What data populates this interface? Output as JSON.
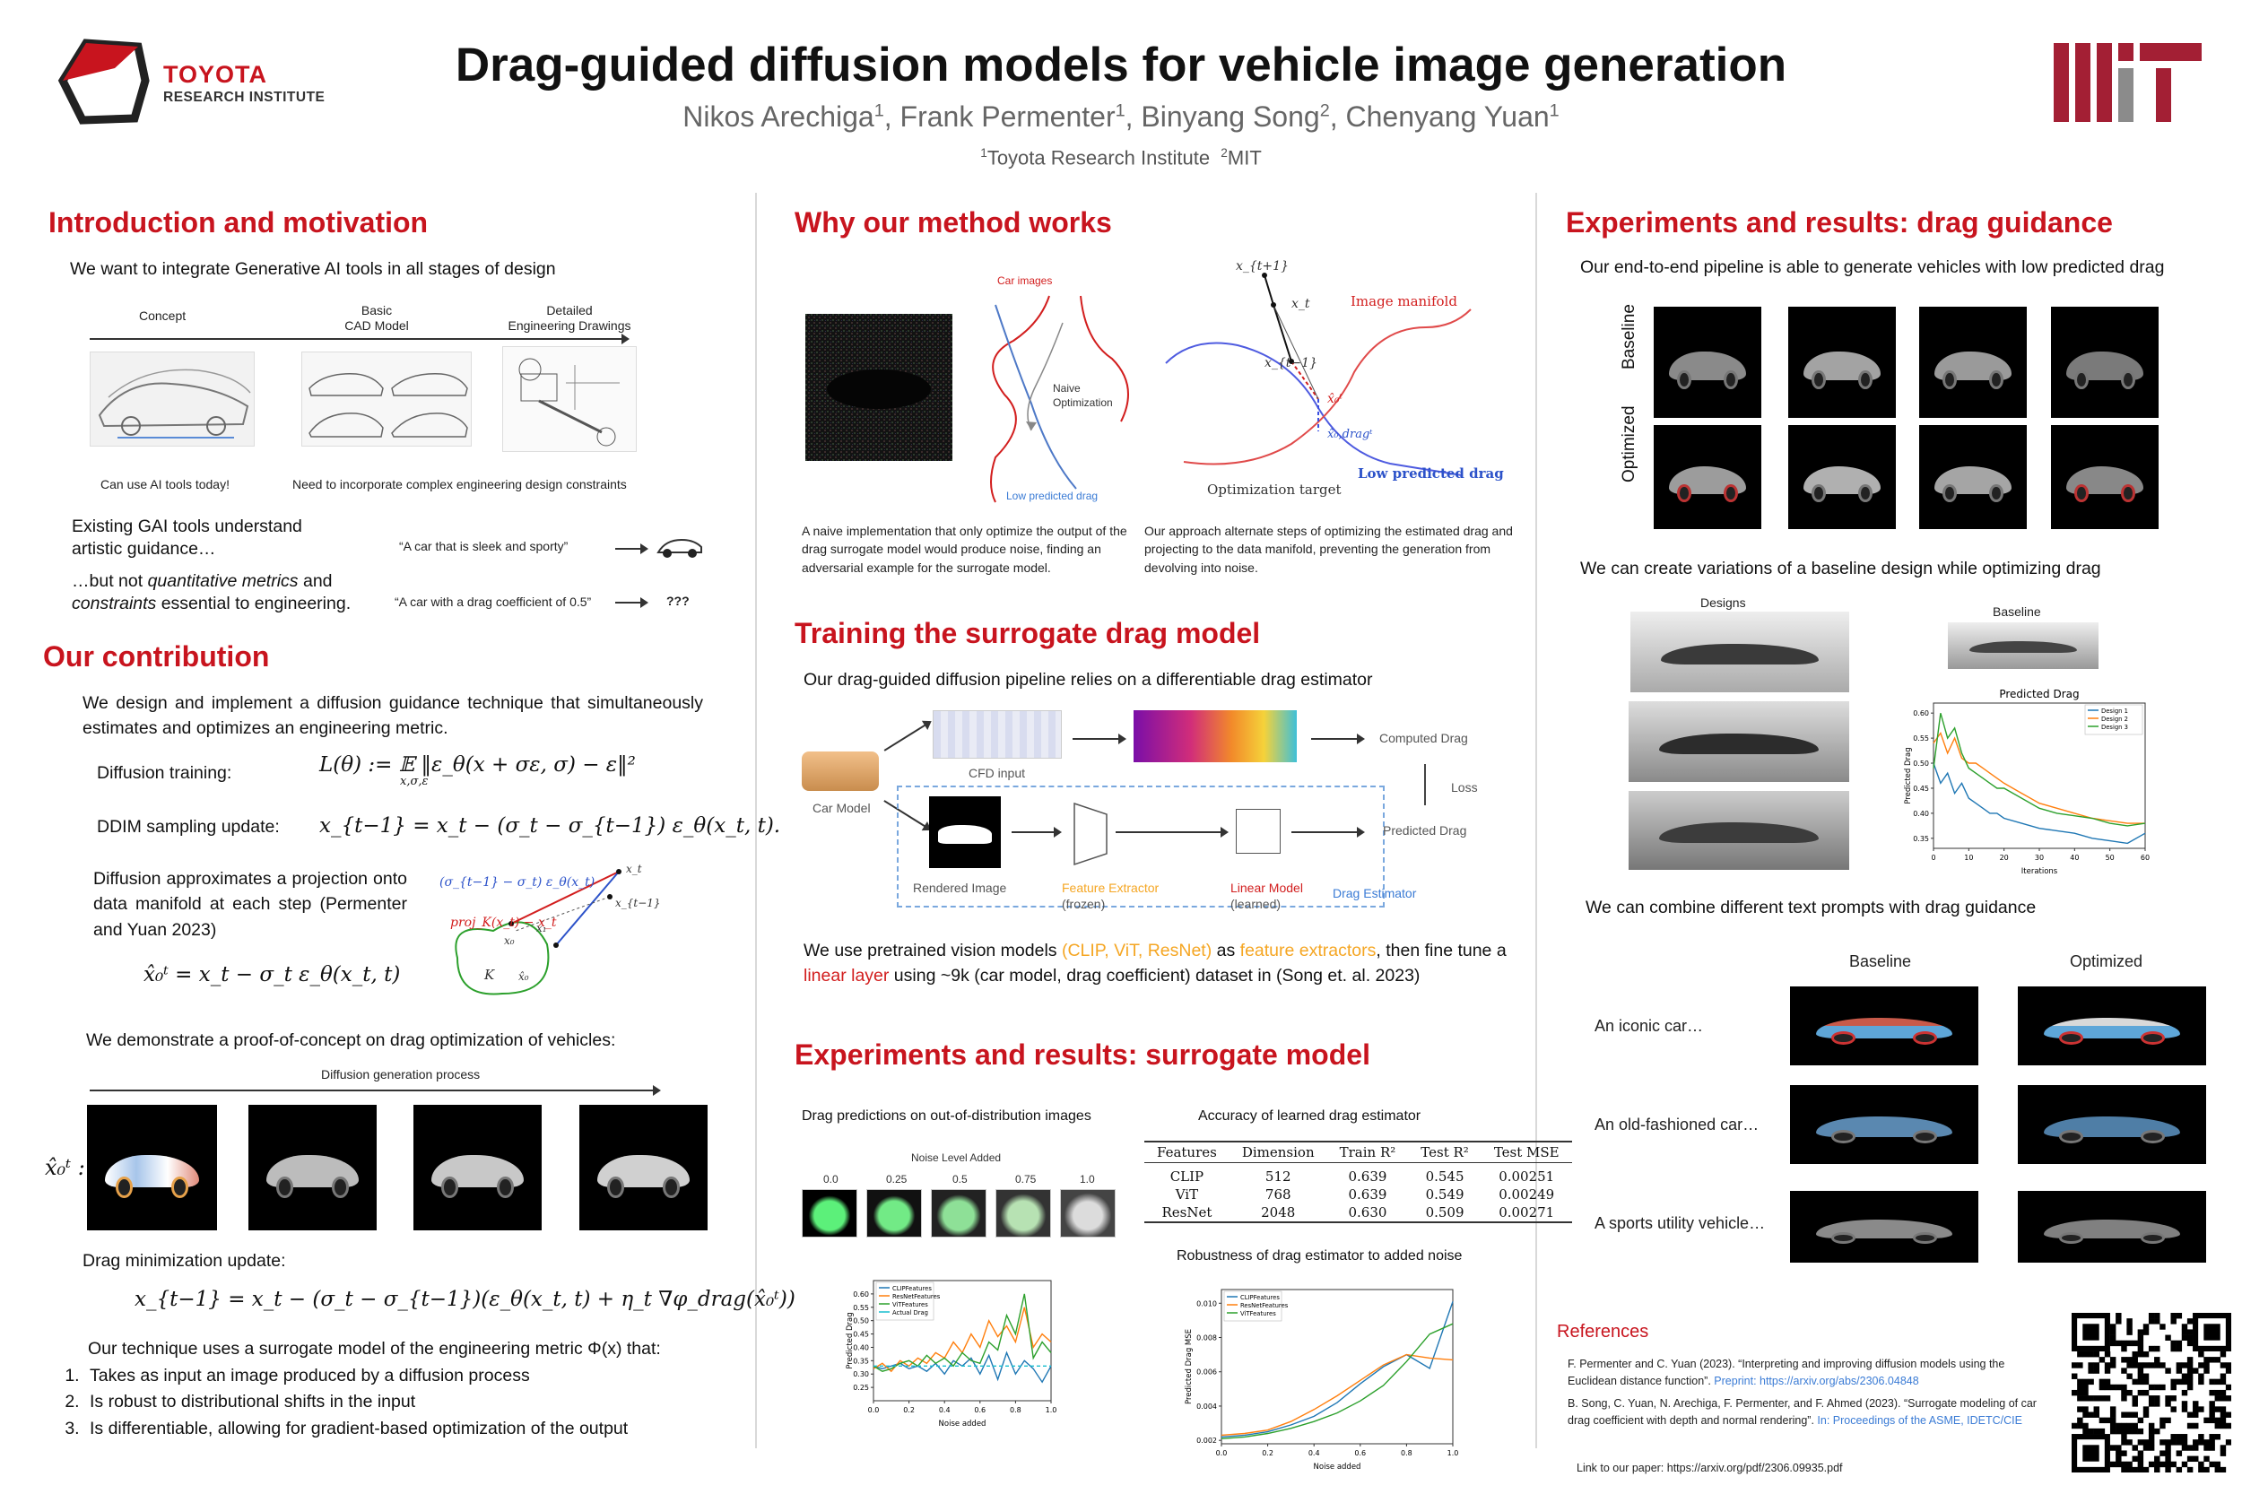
{
  "header": {
    "logo_left_line1": "TOYOTA",
    "logo_left_line2": "RESEARCH INSTITUTE",
    "title": "Drag-guided diffusion models for vehicle image generation",
    "authors": [
      {
        "name": "Nikos Arechiga",
        "aff": "1"
      },
      {
        "name": "Frank Permenter",
        "aff": "1"
      },
      {
        "name": "Binyang Song",
        "aff": "2"
      },
      {
        "name": "Chenyang Yuan",
        "aff": "1"
      }
    ],
    "aff1": "Toyota Research Institute",
    "aff2": "MIT",
    "aff1_num": "1",
    "aff2_num": "2",
    "logo_right": "MIT"
  },
  "intro": {
    "title": "Introduction and motivation",
    "lead": "We want to integrate Generative AI tools in all stages of design",
    "stage_concept": "Concept",
    "stage_cad_1": "Basic",
    "stage_cad_2": "CAD Model",
    "stage_eng_1": "Detailed",
    "stage_eng_2": "Engineering Drawings",
    "caption_left": "Can use AI tools today!",
    "caption_right": "Need to incorporate complex engineering design constraints",
    "gai_line1": "Existing GAI tools understand",
    "gai_line2": "artistic guidance…",
    "prompt1": "“A car that is sleek and sporty”",
    "but_line1_a": "…but not ",
    "but_line1_b": "quantitative metrics",
    "but_line1_c": " and",
    "but_line2_a": "constraints",
    "but_line2_b": " essential to engineering.",
    "prompt2": "“A car with a drag coefficient of 0.5”",
    "unknown": "???"
  },
  "contribution": {
    "title": "Our contribution",
    "lead": "We design and implement a diffusion guidance technique that simultaneously estimates and optimizes an engineering metric.",
    "diffusion_training_label": "Diffusion training:",
    "diffusion_training_eq": "L(θ) := 𝔼 ‖ε_θ(x + σε, σ) − ε‖²",
    "diffusion_training_sub": "x,σ,ε",
    "ddim_label": "DDIM sampling update:",
    "ddim_eq": "x_{t−1} = x_t − (σ_t − σ_{t−1}) ε_θ(x_t, t).",
    "projection_text": "Diffusion approximates a projection onto data manifold at each step (Permenter and Yuan 2023)",
    "x0_eq": "x̂₀ᵗ = x_t − σ_t ε_θ(x_t, t)",
    "diag_label_top": "(σ_{t−1} − σ_t) ε_θ(x_t)",
    "diag_label_proj": "proj_K(x_t) − x_t",
    "diag_xt": "x_t",
    "diag_xt1": "x_{t−1}",
    "diag_x1": "x₁",
    "diag_x0": "x₀",
    "diag_k": "K",
    "diag_x0hat": "x̂₀",
    "demo_lead": "We demonstrate a proof-of-concept on drag optimization of vehicles:",
    "process_label": "Diffusion generation process",
    "row_label": "x̂₀ᵗ :",
    "drag_update_label": "Drag minimization update:",
    "drag_update_eq": "x_{t−1} = x_t − (σ_t − σ_{t−1})(ε_θ(x_t, t) + η_t ∇φ_drag(x̂₀ᵗ))",
    "surrogate_lead": "Our technique uses a surrogate model of the engineering metric Φ(x) that:",
    "items": [
      "Takes as input an image produced by a diffusion process",
      "Is robust to distributional shifts in the input",
      "Is differentiable, allowing for gradient-based optimization of the output"
    ]
  },
  "why": {
    "title": "Why our method works",
    "car_images": "Car images",
    "naive": "Naive",
    "optimization": "Optimization",
    "low_drag": "Low predicted drag",
    "xt1": "x_{t+1}",
    "xt": "x_t",
    "xtm1": "x_{t−1}",
    "x0t": "x̂₀ᵗ",
    "x0drag": "x̂₀,dragᵗ",
    "image_manifold": "Image manifold",
    "low_drag2": "Low predicted drag",
    "opt_target": "Optimization target",
    "caption_left": "A naive implementation that only optimize the output of the drag surrogate model would produce noise, finding an adversarial example for the surrogate model.",
    "caption_right": "Our approach alternate steps of optimizing the estimated drag and projecting to the data manifold, preventing the generation from devolving into noise."
  },
  "training": {
    "title": "Training the surrogate drag model",
    "lead": "Our drag-guided diffusion pipeline relies on a differentiable drag estimator",
    "car_model": "Car Model",
    "cfd_input": "CFD input",
    "computed_drag": "Computed Drag",
    "loss": "Loss",
    "predicted_drag": "Predicted Drag",
    "rendered_image": "Rendered Image",
    "feature_extractor": "Feature Extractor",
    "frozen": "(frozen)",
    "linear_model": "Linear Model",
    "learned": "(learned)",
    "drag_estimator": "Drag Estimator",
    "desc_a": "We use pretrained vision models ",
    "desc_b": "(CLIP, ViT, ResNet)",
    "desc_c": " as ",
    "desc_d": "feature extractors",
    "desc_e": ", then fine tune a ",
    "desc_f": "linear layer",
    "desc_g": " using ~9k (car model, drag coefficient) dataset in (Song et. al. 2023)"
  },
  "surrogate_results": {
    "title": "Experiments and results: surrogate model",
    "ood_label": "Drag predictions on out-of-distribution images",
    "noise_label": "Noise Level Added",
    "noise_levels": [
      "0.0",
      "0.25",
      "0.5",
      "0.75",
      "1.0"
    ],
    "acc_label": "Accuracy of learned drag estimator",
    "table": {
      "headers": [
        "Features",
        "Dimension",
        "Train R²",
        "Test R²",
        "Test MSE"
      ],
      "rows": [
        [
          "CLIP",
          "512",
          "0.639",
          "0.545",
          "0.00251"
        ],
        [
          "ViT",
          "768",
          "0.639",
          "0.549",
          "0.00249"
        ],
        [
          "ResNet",
          "2048",
          "0.630",
          "0.509",
          "0.00271"
        ]
      ]
    },
    "robust_label": "Robustness of drag estimator to added noise"
  },
  "chart_data": [
    {
      "type": "line",
      "title": "",
      "xlabel": "Noise added",
      "ylabel": "Predicted Drag",
      "xlim": [
        0,
        1
      ],
      "ylim": [
        0.2,
        0.65
      ],
      "x": [
        0.0,
        0.05,
        0.1,
        0.15,
        0.2,
        0.25,
        0.3,
        0.35,
        0.4,
        0.45,
        0.5,
        0.55,
        0.6,
        0.65,
        0.7,
        0.75,
        0.8,
        0.85,
        0.9,
        0.95,
        1.0
      ],
      "series": [
        {
          "name": "CLIPFeatures",
          "color": "#1f77b4",
          "values": [
            0.33,
            0.32,
            0.33,
            0.34,
            0.32,
            0.33,
            0.31,
            0.34,
            0.3,
            0.35,
            0.33,
            0.36,
            0.3,
            0.37,
            0.28,
            0.38,
            0.3,
            0.35,
            0.32,
            0.27,
            0.33
          ]
        },
        {
          "name": "ResNetFeatures",
          "color": "#ff7f0e",
          "values": [
            0.32,
            0.34,
            0.31,
            0.35,
            0.33,
            0.36,
            0.34,
            0.38,
            0.36,
            0.42,
            0.38,
            0.45,
            0.4,
            0.5,
            0.44,
            0.48,
            0.42,
            0.55,
            0.4,
            0.45,
            0.42
          ]
        },
        {
          "name": "ViTFeatures",
          "color": "#2ca02c",
          "values": [
            0.33,
            0.31,
            0.32,
            0.34,
            0.35,
            0.33,
            0.37,
            0.34,
            0.36,
            0.33,
            0.38,
            0.35,
            0.34,
            0.42,
            0.39,
            0.52,
            0.45,
            0.6,
            0.36,
            0.42,
            0.38
          ]
        },
        {
          "name": "Actual Drag",
          "color": "#17becf",
          "values": [
            0.33,
            0.33,
            0.33,
            0.33,
            0.33,
            0.33,
            0.33,
            0.33,
            0.33,
            0.33,
            0.33,
            0.33,
            0.33,
            0.33,
            0.33,
            0.33,
            0.33,
            0.33,
            0.33,
            0.33,
            0.33
          ]
        }
      ]
    },
    {
      "type": "line",
      "title": "",
      "xlabel": "Noise added",
      "ylabel": "Predicted Drag MSE",
      "xlim": [
        0,
        1
      ],
      "ylim": [
        0.0018,
        0.0108
      ],
      "x": [
        0.0,
        0.1,
        0.2,
        0.3,
        0.4,
        0.5,
        0.6,
        0.7,
        0.8,
        0.9,
        1.0
      ],
      "series": [
        {
          "name": "CLIPFeatures",
          "color": "#1f77b4",
          "values": [
            0.0022,
            0.0023,
            0.0025,
            0.0029,
            0.0034,
            0.0042,
            0.0053,
            0.0063,
            0.007,
            0.0062,
            0.0101
          ]
        },
        {
          "name": "ResNetFeatures",
          "color": "#ff7f0e",
          "values": [
            0.0023,
            0.0024,
            0.0026,
            0.0031,
            0.0038,
            0.0046,
            0.0055,
            0.0064,
            0.007,
            0.0068,
            0.0067
          ]
        },
        {
          "name": "ViTFeatures",
          "color": "#2ca02c",
          "values": [
            0.0021,
            0.0022,
            0.0024,
            0.0027,
            0.0031,
            0.0036,
            0.0043,
            0.0052,
            0.0066,
            0.0082,
            0.0088
          ]
        }
      ]
    },
    {
      "type": "line",
      "title": "Predicted Drag",
      "xlabel": "Iterations",
      "ylabel": "Predicted Drag",
      "xlim": [
        0,
        60
      ],
      "ylim": [
        0.33,
        0.62
      ],
      "x": [
        0,
        2,
        4,
        6,
        8,
        10,
        12,
        14,
        16,
        18,
        20,
        25,
        30,
        35,
        40,
        45,
        50,
        55,
        60
      ],
      "series": [
        {
          "name": "Design 1",
          "color": "#1f77b4",
          "values": [
            0.5,
            0.46,
            0.48,
            0.44,
            0.46,
            0.43,
            0.42,
            0.41,
            0.4,
            0.4,
            0.39,
            0.38,
            0.37,
            0.365,
            0.36,
            0.35,
            0.345,
            0.34,
            0.36
          ]
        },
        {
          "name": "Design 2",
          "color": "#ff7f0e",
          "values": [
            0.54,
            0.56,
            0.52,
            0.55,
            0.51,
            0.5,
            0.5,
            0.49,
            0.48,
            0.47,
            0.46,
            0.44,
            0.42,
            0.41,
            0.4,
            0.39,
            0.385,
            0.38,
            0.38
          ]
        },
        {
          "name": "Design 3",
          "color": "#2ca02c",
          "values": [
            0.49,
            0.6,
            0.55,
            0.57,
            0.52,
            0.49,
            0.48,
            0.47,
            0.46,
            0.45,
            0.45,
            0.43,
            0.41,
            0.4,
            0.395,
            0.39,
            0.38,
            0.375,
            0.38
          ]
        }
      ]
    }
  ],
  "drag_results": {
    "title": "Experiments and results: drag guidance",
    "lead": "Our end-to-end pipeline is able to generate vehicles with low predicted drag",
    "baseline_row": "Baseline",
    "optimized_row": "Optimized",
    "variations_lead": "We can create variations of a baseline design while optimizing drag",
    "designs_label": "Designs",
    "baseline_label": "Baseline",
    "combine_lead": "We can combine different text prompts with drag guidance",
    "col_baseline": "Baseline",
    "col_optimized": "Optimized",
    "prompts": [
      "An iconic car…",
      "An old-fashioned car…",
      "A sports utility vehicle…"
    ]
  },
  "references": {
    "title": "References",
    "ref1_text": "F. Permenter and C. Yuan (2023). “Interpreting and improving diffusion models using the Euclidean distance function”. ",
    "ref1_link": "Preprint: https://arxiv.org/abs/2306.04848",
    "ref2_text": "B. Song, C. Yuan, N. Arechiga, F. Permenter, and F. Ahmed  (2023). “Surrogate modeling of car drag coefficient with depth and normal rendering”. ",
    "ref2_link": "In: Proceedings of the ASME, IDETC/CIE",
    "paper_link": "Link to our paper: https://arxiv.org/pdf/2306.09935.pdf"
  },
  "colors": {
    "accent_red": "#c8141e",
    "mit_red": "#a31f34",
    "blue": "#3a7bd5",
    "orange": "#f5a623"
  }
}
